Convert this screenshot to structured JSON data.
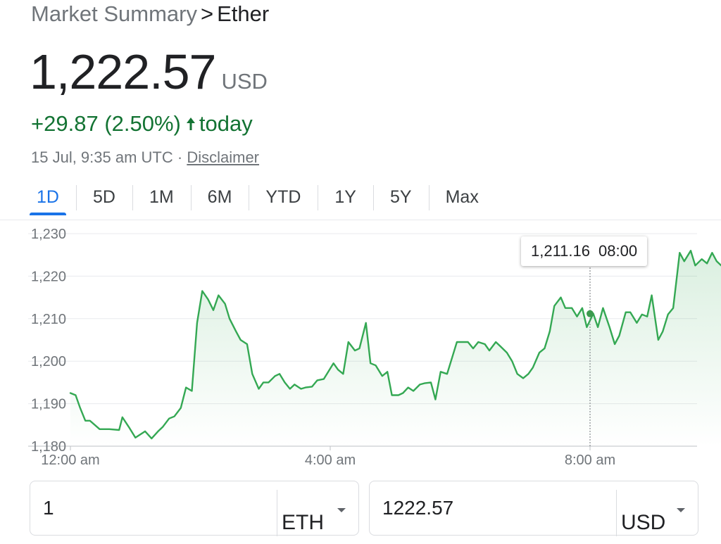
{
  "breadcrumb": {
    "parent": "Market Summary",
    "separator": ">",
    "current": "Ether"
  },
  "price": {
    "value": "1,222.57",
    "currency": "USD"
  },
  "change": {
    "amount": "+29.87",
    "percent": "(2.50%)",
    "suffix": "today",
    "direction_icon": "arrow-up-icon",
    "color": "#137333"
  },
  "meta": {
    "timestamp": "15 Jul, 9:35 am UTC",
    "separator": "·",
    "disclaimer": "Disclaimer"
  },
  "tabs": [
    {
      "label": "1D",
      "active": true
    },
    {
      "label": "5D"
    },
    {
      "label": "1M"
    },
    {
      "label": "6M"
    },
    {
      "label": "YTD"
    },
    {
      "label": "1Y"
    },
    {
      "label": "5Y"
    },
    {
      "label": "Max"
    }
  ],
  "tooltip": {
    "value": "1,211.16",
    "time": "08:00"
  },
  "converter": {
    "from": {
      "amount": "1",
      "unit": "ETH"
    },
    "to": {
      "amount": "1222.57",
      "unit": "USD"
    }
  },
  "chart_data": {
    "type": "area",
    "y_tick_labels": [
      "1,230",
      "1,220",
      "1,210",
      "1,200",
      "1,190",
      "1,180"
    ],
    "y_ticks": [
      1230,
      1220,
      1210,
      1200,
      1190,
      1180
    ],
    "ylim": [
      1180,
      1230
    ],
    "x_tick_labels": [
      "12:00 am",
      "4:00 am",
      "8:00 am"
    ],
    "x_ticks_hours": [
      0,
      4,
      8
    ],
    "xlim_hours": [
      0,
      10.2
    ],
    "line_color": "#34a853",
    "highlight": {
      "x_hours": 8.0,
      "y": 1211.16
    },
    "series": [
      {
        "x": [
          0.0,
          0.08,
          0.15,
          0.23,
          0.3,
          0.45,
          0.6,
          0.75,
          0.8,
          0.9,
          1.0,
          1.1,
          1.15,
          1.25,
          1.35,
          1.42,
          1.52,
          1.6,
          1.7,
          1.78,
          1.87,
          1.95,
          2.03,
          2.12,
          2.2,
          2.28,
          2.38,
          2.45,
          2.55,
          2.62,
          2.72,
          2.8,
          2.9,
          2.97,
          3.05,
          3.15,
          3.22,
          3.3,
          3.38,
          3.45,
          3.55,
          3.62,
          3.72,
          3.8,
          3.9,
          3.97,
          4.05,
          4.12,
          4.2,
          4.28,
          4.38,
          4.45,
          4.55,
          4.62,
          4.7,
          4.8,
          4.88,
          4.95,
          5.05,
          5.12,
          5.2,
          5.28,
          5.38,
          5.45,
          5.55,
          5.62,
          5.7,
          5.8,
          5.88,
          5.95,
          6.05,
          6.12,
          6.2,
          6.28,
          6.38,
          6.45,
          6.55,
          6.62,
          6.72,
          6.8,
          6.88,
          6.97,
          7.05,
          7.12,
          7.22,
          7.3,
          7.38,
          7.45,
          7.55,
          7.62,
          7.72,
          7.8,
          7.88,
          7.95,
          8.05,
          8.12,
          8.2,
          8.3,
          8.38,
          8.45,
          8.55,
          8.62,
          8.72,
          8.8,
          8.88,
          8.95,
          9.05,
          9.12,
          9.2,
          9.28,
          9.38,
          9.45,
          9.55,
          9.62,
          9.72,
          9.8,
          9.88,
          9.95,
          10.02
        ],
        "y": [
          1192.5,
          1192.0,
          1189.0,
          1186.0,
          1186.0,
          1184.0,
          1184.0,
          1183.8,
          1186.8,
          1184.5,
          1182.0,
          1183.0,
          1183.5,
          1181.8,
          1183.5,
          1184.5,
          1186.5,
          1187.0,
          1189.0,
          1193.8,
          1193.0,
          1209.0,
          1216.5,
          1214.5,
          1212.0,
          1215.5,
          1213.5,
          1210.0,
          1207.0,
          1205.0,
          1204.0,
          1197.0,
          1193.5,
          1195.0,
          1195.0,
          1196.5,
          1197.0,
          1195.0,
          1193.5,
          1194.5,
          1193.5,
          1193.8,
          1194.0,
          1195.5,
          1195.8,
          1197.5,
          1199.5,
          1198.0,
          1197.0,
          1204.5,
          1202.5,
          1203.0,
          1209.0,
          1199.5,
          1199.0,
          1196.5,
          1197.5,
          1192.0,
          1192.0,
          1192.5,
          1193.8,
          1193.0,
          1194.5,
          1194.8,
          1195.0,
          1191.0,
          1197.5,
          1197.0,
          1201.0,
          1204.5,
          1204.5,
          1204.5,
          1203.0,
          1204.5,
          1204.0,
          1202.5,
          1204.5,
          1203.5,
          1202.0,
          1200.0,
          1197.0,
          1196.0,
          1197.0,
          1198.5,
          1202.0,
          1203.0,
          1207.0,
          1213.0,
          1215.0,
          1212.5,
          1212.5,
          1210.5,
          1212.5,
          1208.0,
          1211.2,
          1208.0,
          1212.5,
          1208.0,
          1204.0,
          1206.0,
          1211.5,
          1211.5,
          1209.0,
          1211.0,
          1210.5,
          1215.5,
          1205.0,
          1207.0,
          1211.0,
          1212.5,
          1225.5,
          1223.5,
          1226.0,
          1222.5,
          1224.0,
          1223.0,
          1225.5,
          1223.5,
          1222.5
        ]
      }
    ]
  }
}
